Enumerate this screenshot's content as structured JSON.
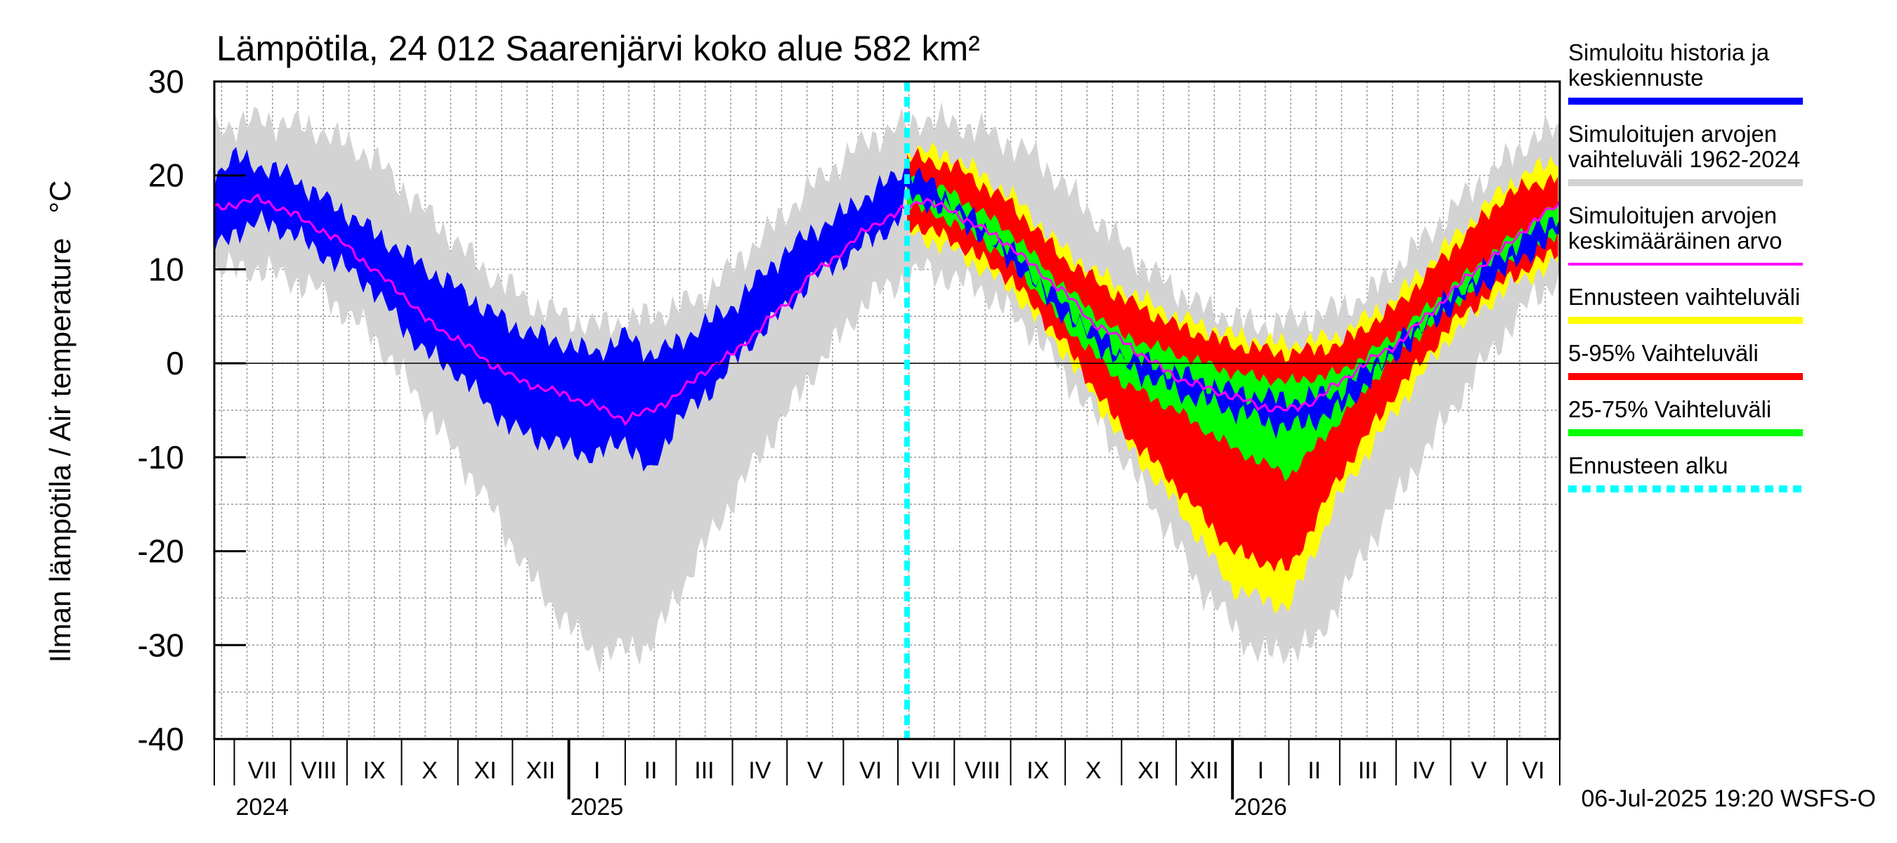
{
  "chart_data": {
    "type": "area",
    "title": "Lämpötila, 24 012 Saarenjärvi koko alue 582 km²",
    "ylabel": "Ilman lämpötila / Air temperature   °C",
    "ylim": [
      -40,
      30
    ],
    "yticks": [
      -40,
      -30,
      -20,
      -10,
      0,
      10,
      20,
      30
    ],
    "xlim": [
      "2024-06-20",
      "2026-06-30"
    ],
    "forecast_start": "2025-07-06",
    "months": [
      {
        "label": "VII",
        "start": "2024-07-01",
        "end": "2024-08-01"
      },
      {
        "label": "VIII",
        "start": "2024-08-01",
        "end": "2024-09-01"
      },
      {
        "label": "IX",
        "start": "2024-09-01",
        "end": "2024-10-01"
      },
      {
        "label": "X",
        "start": "2024-10-01",
        "end": "2024-11-01"
      },
      {
        "label": "XI",
        "start": "2024-11-01",
        "end": "2024-12-01"
      },
      {
        "label": "XII",
        "start": "2024-12-01",
        "end": "2025-01-01"
      },
      {
        "label": "I",
        "start": "2025-01-01",
        "end": "2025-02-01"
      },
      {
        "label": "II",
        "start": "2025-02-01",
        "end": "2025-03-01"
      },
      {
        "label": "III",
        "start": "2025-03-01",
        "end": "2025-04-01"
      },
      {
        "label": "IV",
        "start": "2025-04-01",
        "end": "2025-05-01"
      },
      {
        "label": "V",
        "start": "2025-05-01",
        "end": "2025-06-01"
      },
      {
        "label": "VI",
        "start": "2025-06-01",
        "end": "2025-07-01"
      },
      {
        "label": "VII",
        "start": "2025-07-01",
        "end": "2025-08-01"
      },
      {
        "label": "VIII",
        "start": "2025-08-01",
        "end": "2025-09-01"
      },
      {
        "label": "IX",
        "start": "2025-09-01",
        "end": "2025-10-01"
      },
      {
        "label": "X",
        "start": "2025-10-01",
        "end": "2025-11-01"
      },
      {
        "label": "XI",
        "start": "2025-11-01",
        "end": "2025-12-01"
      },
      {
        "label": "XII",
        "start": "2025-12-01",
        "end": "2026-01-01"
      },
      {
        "label": "I",
        "start": "2026-01-01",
        "end": "2026-02-01"
      },
      {
        "label": "II",
        "start": "2026-02-01",
        "end": "2026-03-01"
      },
      {
        "label": "III",
        "start": "2026-03-01",
        "end": "2026-04-01"
      },
      {
        "label": "IV",
        "start": "2026-04-01",
        "end": "2026-05-01"
      },
      {
        "label": "V",
        "start": "2026-05-01",
        "end": "2026-06-01"
      },
      {
        "label": "VI",
        "start": "2026-06-01",
        "end": "2026-07-01"
      }
    ],
    "years": [
      {
        "label": "2024",
        "date": "2024-07-01"
      },
      {
        "label": "2025",
        "date": "2025-01-01"
      },
      {
        "label": "2026",
        "date": "2026-01-01"
      }
    ],
    "legend": [
      {
        "label": "Simuloitu historia ja keskiennuste",
        "lines": [
          "Simuloitu historia ja",
          "keskiennuste"
        ],
        "color": "#0000ff",
        "style": "solid"
      },
      {
        "label": "Simuloitujen arvojen vaihteluväli 1962-2024",
        "lines": [
          "Simuloitujen arvojen",
          "vaihteluväli 1962-2024"
        ],
        "color": "#d3d3d3",
        "style": "solid"
      },
      {
        "label": "Simuloitujen arvojen keskimääräinen arvo",
        "lines": [
          "Simuloitujen arvojen",
          "keskimääräinen arvo"
        ],
        "color": "#ff00ff",
        "style": "thin"
      },
      {
        "label": "Ennusteen vaihteluväli",
        "lines": [
          "Ennusteen vaihteluväli"
        ],
        "color": "#ffff00",
        "style": "solid"
      },
      {
        "label": "5-95% Vaihteluväli",
        "lines": [
          "5-95% Vaihteluväli"
        ],
        "color": "#ff0000",
        "style": "solid"
      },
      {
        "label": "25-75% Vaihteluväli",
        "lines": [
          "25-75% Vaihteluväli"
        ],
        "color": "#00ff00",
        "style": "solid"
      },
      {
        "label": "Ennusteen alku",
        "lines": [
          "Ennusteen alku"
        ],
        "color": "#00ffff",
        "style": "dashed"
      }
    ],
    "series": [
      {
        "name": "Simuloitujen arvojen vaihteluväli 1962-2024",
        "color": "#d3d3d3",
        "x": [
          "2024-06-20",
          "2024-07-15",
          "2024-08-15",
          "2024-09-15",
          "2024-10-15",
          "2024-11-15",
          "2024-12-15",
          "2025-01-15",
          "2025-02-15",
          "2025-03-15",
          "2025-04-15",
          "2025-05-15",
          "2025-06-15",
          "2025-07-15",
          "2025-08-15",
          "2025-09-15",
          "2025-10-15",
          "2025-11-15",
          "2025-12-15",
          "2026-01-15",
          "2026-02-15",
          "2026-03-15",
          "2026-04-15",
          "2026-05-15",
          "2026-06-15",
          "2026-06-30"
        ],
        "upper": [
          25,
          26,
          25,
          22,
          16,
          10,
          6,
          4,
          5,
          7,
          13,
          19,
          24,
          26,
          25,
          22,
          16,
          10,
          6,
          4,
          5,
          7,
          13,
          19,
          24,
          25
        ],
        "lower": [
          10,
          10,
          8,
          3,
          -5,
          -14,
          -24,
          -31,
          -30,
          -20,
          -10,
          -1,
          7,
          10,
          8,
          3,
          -5,
          -14,
          -24,
          -31,
          -30,
          -20,
          -10,
          -1,
          7,
          9
        ]
      },
      {
        "name": "Ennusteen vaihteluväli",
        "color": "#ffff00",
        "x": [
          "2025-07-06",
          "2025-08-01",
          "2025-09-01",
          "2025-10-01",
          "2025-11-01",
          "2025-12-01",
          "2026-01-01",
          "2026-02-01",
          "2026-03-01",
          "2026-04-01",
          "2026-05-01",
          "2026-06-01",
          "2026-06-30"
        ],
        "upper": [
          23,
          22,
          18,
          12,
          8,
          5,
          3,
          2,
          3,
          7,
          13,
          19,
          22
        ],
        "lower": [
          14,
          12,
          8,
          1,
          -8,
          -15,
          -24,
          -26,
          -14,
          -5,
          3,
          8,
          11
        ]
      },
      {
        "name": "5-95% Vaihteluväli",
        "color": "#ff0000",
        "x": [
          "2025-07-06",
          "2025-08-01",
          "2025-09-01",
          "2025-10-01",
          "2025-11-01",
          "2025-12-01",
          "2026-01-01",
          "2026-02-01",
          "2026-03-01",
          "2026-04-01",
          "2026-05-01",
          "2026-06-01",
          "2026-06-30"
        ],
        "upper": [
          22,
          21,
          17,
          11,
          7,
          4,
          2,
          1,
          2,
          6,
          12,
          18,
          20
        ],
        "lower": [
          15,
          13,
          9,
          2,
          -7,
          -13,
          -20,
          -22,
          -12,
          -3,
          4,
          9,
          12
        ]
      },
      {
        "name": "25-75% Vaihteluväli",
        "color": "#00ff00",
        "x": [
          "2025-07-06",
          "2025-08-01",
          "2025-09-01",
          "2025-10-01",
          "2025-11-01",
          "2025-12-01",
          "2026-01-01",
          "2026-02-01",
          "2026-03-01",
          "2026-04-01",
          "2026-05-01",
          "2026-06-01",
          "2026-06-30"
        ],
        "upper": [
          20,
          18,
          14,
          8,
          3,
          1,
          -1,
          -2,
          -1,
          3,
          8,
          13,
          17
        ],
        "lower": [
          17,
          15,
          11,
          4,
          -2,
          -5,
          -9,
          -12,
          -6,
          1,
          6,
          11,
          14
        ]
      },
      {
        "name": "Simuloitu historia ja keskiennuste",
        "color": "#0000ff",
        "x": [
          "2024-06-20",
          "2024-07-01",
          "2024-07-15",
          "2024-08-01",
          "2024-08-15",
          "2024-09-01",
          "2024-09-15",
          "2024-10-01",
          "2024-10-15",
          "2024-11-01",
          "2024-11-15",
          "2024-12-01",
          "2024-12-15",
          "2025-01-01",
          "2025-01-15",
          "2025-02-01",
          "2025-02-15",
          "2025-03-01",
          "2025-03-15",
          "2025-04-01",
          "2025-04-15",
          "2025-05-01",
          "2025-05-15",
          "2025-06-01",
          "2025-06-15",
          "2025-07-01",
          "2025-07-06",
          "2025-08-01",
          "2025-09-01",
          "2025-10-01",
          "2025-11-01",
          "2025-12-01",
          "2026-01-01",
          "2026-02-01",
          "2026-03-01",
          "2026-04-01",
          "2026-05-01",
          "2026-06-01",
          "2026-06-30"
        ],
        "upper": [
          20,
          22,
          21,
          20,
          18,
          16,
          14,
          12,
          10,
          8,
          6,
          4,
          3,
          2,
          1,
          3,
          1,
          2,
          4,
          6,
          9,
          12,
          14,
          16,
          18,
          20,
          21,
          17,
          12,
          6,
          1,
          -1,
          -3,
          -4,
          -3,
          2,
          7,
          12,
          16
        ],
        "lower": [
          12,
          14,
          15,
          14,
          12,
          10,
          8,
          4,
          1,
          -1,
          -4,
          -7,
          -8,
          -9,
          -10,
          -8,
          -12,
          -6,
          -4,
          0,
          3,
          6,
          9,
          11,
          13,
          15,
          18,
          16,
          11,
          5,
          0,
          -3,
          -5,
          -7,
          -5,
          1,
          6,
          10,
          14
        ]
      },
      {
        "name": "Simuloitujen arvojen keskimääräinen arvo",
        "color": "#ff00ff",
        "x": [
          "2024-06-20",
          "2024-07-15",
          "2024-08-01",
          "2024-08-15",
          "2024-09-01",
          "2024-09-15",
          "2024-10-01",
          "2024-10-15",
          "2024-11-01",
          "2024-11-15",
          "2024-12-01",
          "2024-12-15",
          "2025-01-01",
          "2025-01-15",
          "2025-02-01",
          "2025-02-15",
          "2025-03-01",
          "2025-03-15",
          "2025-04-01",
          "2025-04-15",
          "2025-05-01",
          "2025-05-15",
          "2025-06-01",
          "2025-06-15",
          "2025-07-01",
          "2025-07-15",
          "2025-08-01",
          "2025-08-15",
          "2025-09-01",
          "2025-09-15",
          "2025-10-01",
          "2025-10-15",
          "2025-11-01",
          "2025-11-15",
          "2025-12-01",
          "2025-12-15",
          "2026-01-01",
          "2026-01-15",
          "2026-02-01",
          "2026-02-15",
          "2026-03-01",
          "2026-03-15",
          "2026-04-01",
          "2026-04-15",
          "2026-05-01",
          "2026-05-15",
          "2026-06-01",
          "2026-06-15",
          "2026-06-30"
        ],
        "values": [
          16.5,
          17.5,
          16,
          14.5,
          12.5,
          10,
          7.5,
          4.5,
          2.5,
          0.5,
          -1.5,
          -2.5,
          -3.5,
          -4.5,
          -6,
          -5,
          -3.5,
          -1,
          1,
          3.5,
          6.5,
          9.5,
          12,
          14.5,
          16,
          17.5,
          16,
          14.5,
          12.5,
          10,
          7.5,
          4.5,
          2.5,
          0.5,
          -1.5,
          -2.5,
          -3.5,
          -4.5,
          -5,
          -4,
          -2,
          0,
          2,
          4.5,
          7.5,
          10,
          12.5,
          15,
          17
        ]
      }
    ],
    "footer": "06-Jul-2025 19:20 WSFS-O"
  }
}
